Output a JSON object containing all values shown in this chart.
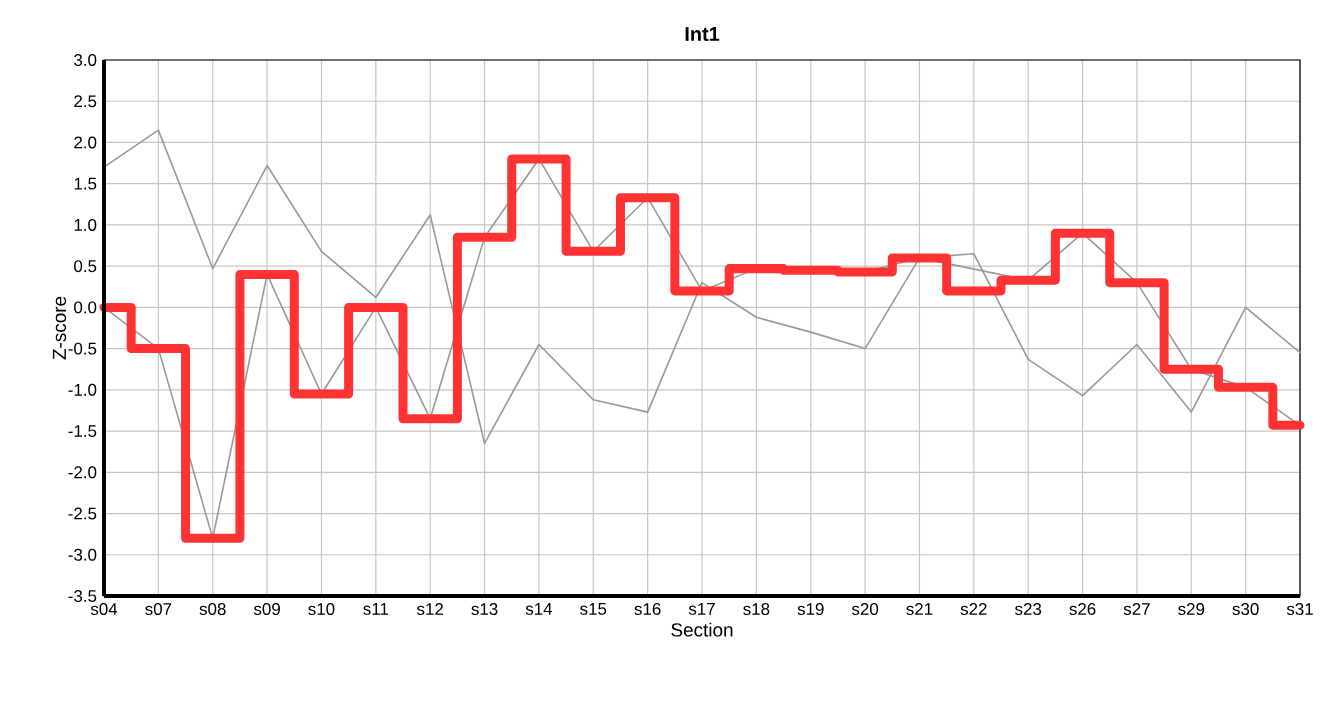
{
  "chart_data": {
    "type": "line",
    "title": "Int1",
    "xlabel": "Section",
    "ylabel": "Z-score",
    "categories": [
      "s04",
      "s07",
      "s08",
      "s09",
      "s10",
      "s11",
      "s12",
      "s13",
      "s14",
      "s15",
      "s16",
      "s17",
      "s18",
      "s19",
      "s20",
      "s21",
      "s22",
      "s23",
      "s26",
      "s27",
      "s29",
      "s30",
      "s31"
    ],
    "series": [
      {
        "color": "#999999",
        "values": [
          1.7,
          2.15,
          0.47,
          1.72,
          0.68,
          0.12,
          1.12,
          -1.65,
          -0.45,
          -1.12,
          -1.27,
          0.3,
          -0.12,
          -0.3,
          -0.5,
          0.6,
          0.65,
          -0.63,
          -1.07,
          -0.45,
          -1.27,
          0.0,
          -0.55
        ]
      },
      {
        "color": "#999999",
        "values": [
          0,
          -0.5,
          -2.8,
          0.4,
          -1.05,
          0,
          -1.35,
          0.85,
          1.8,
          0.68,
          1.33,
          0.2,
          0.47,
          null,
          0.43,
          0.6,
          null,
          0.33,
          0.9,
          0.3,
          -0.75,
          -0.97,
          -1.43
        ]
      },
      {
        "type": "step",
        "color": "#ff3333",
        "values": [
          0,
          -0.5,
          -2.8,
          0.4,
          -1.05,
          0,
          -1.35,
          0.85,
          1.8,
          0.68,
          1.33,
          0.2,
          0.47,
          0.45,
          0.43,
          0.6,
          0.2,
          0.33,
          0.9,
          0.3,
          -0.75,
          -0.97,
          -1.43
        ]
      }
    ],
    "ylim": [
      -3.5,
      3.0
    ],
    "yticks": [
      {
        "value": -3.5,
        "label": "-3.5"
      },
      {
        "value": -3,
        "label": "-3.0"
      },
      {
        "value": -2.5,
        "label": "-2.5"
      },
      {
        "value": -2,
        "label": "-2.0"
      },
      {
        "value": -1.5,
        "label": "-1.5"
      },
      {
        "value": -1,
        "label": "-1.0"
      },
      {
        "value": -0.5,
        "label": "-0.5"
      },
      {
        "value": 0,
        "label": "0.0"
      },
      {
        "value": 0.5,
        "label": "0.5"
      },
      {
        "value": 1,
        "label": "1.0"
      },
      {
        "value": 1.5,
        "label": "1.5"
      },
      {
        "value": 2,
        "label": "2.0"
      },
      {
        "value": 2.5,
        "label": "2.5"
      },
      {
        "value": 3,
        "label": "3.0"
      }
    ],
    "grid": true
  }
}
